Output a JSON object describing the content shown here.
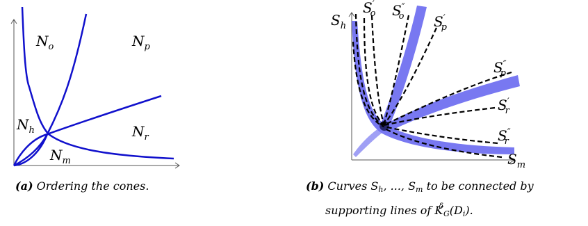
{
  "panel_a": {
    "labels": {
      "No": {
        "base": "N",
        "sub": "o"
      },
      "Np": {
        "base": "N",
        "sub": "p"
      },
      "Nh": {
        "base": "N",
        "sub": "h"
      },
      "Nr": {
        "base": "N",
        "sub": "r"
      },
      "Nm": {
        "base": "N",
        "sub": "m"
      }
    },
    "caption": {
      "tag": "(a)",
      "text": "Ordering the cones."
    },
    "colors": {
      "curve": "#1010cc",
      "axis": "#555555"
    }
  },
  "panel_b": {
    "labels": {
      "Sh": {
        "base": "S",
        "sub": "h",
        "prime": ""
      },
      "So1": {
        "base": "S",
        "sub": "o",
        "prime": "′"
      },
      "So2": {
        "base": "S",
        "sub": "o",
        "prime": "″"
      },
      "Sp1": {
        "base": "S",
        "sub": "p",
        "prime": "′"
      },
      "Sp2": {
        "base": "S",
        "sub": "p",
        "prime": "″"
      },
      "Sr1": {
        "base": "S",
        "sub": "r",
        "prime": "′"
      },
      "Sr2": {
        "base": "S",
        "sub": "r",
        "prime": "″"
      },
      "Sm": {
        "base": "S",
        "sub": "m",
        "prime": ""
      }
    },
    "caption": {
      "tag": "(b)",
      "line1": "Curves S",
      "line1_sub_h": "h",
      "line1_mid": ", ..., S",
      "line1_sub_m": "m",
      "line1_end": " to be connected by",
      "line2": "supporting lines of K",
      "line2_sup": "δ",
      "line2_sub": "G",
      "line2_end": "(D",
      "line2_sub_i": "i",
      "line2_close": ")."
    },
    "colors": {
      "band": "#6a6af0",
      "dash": "#000000",
      "axis": "#555555"
    }
  }
}
